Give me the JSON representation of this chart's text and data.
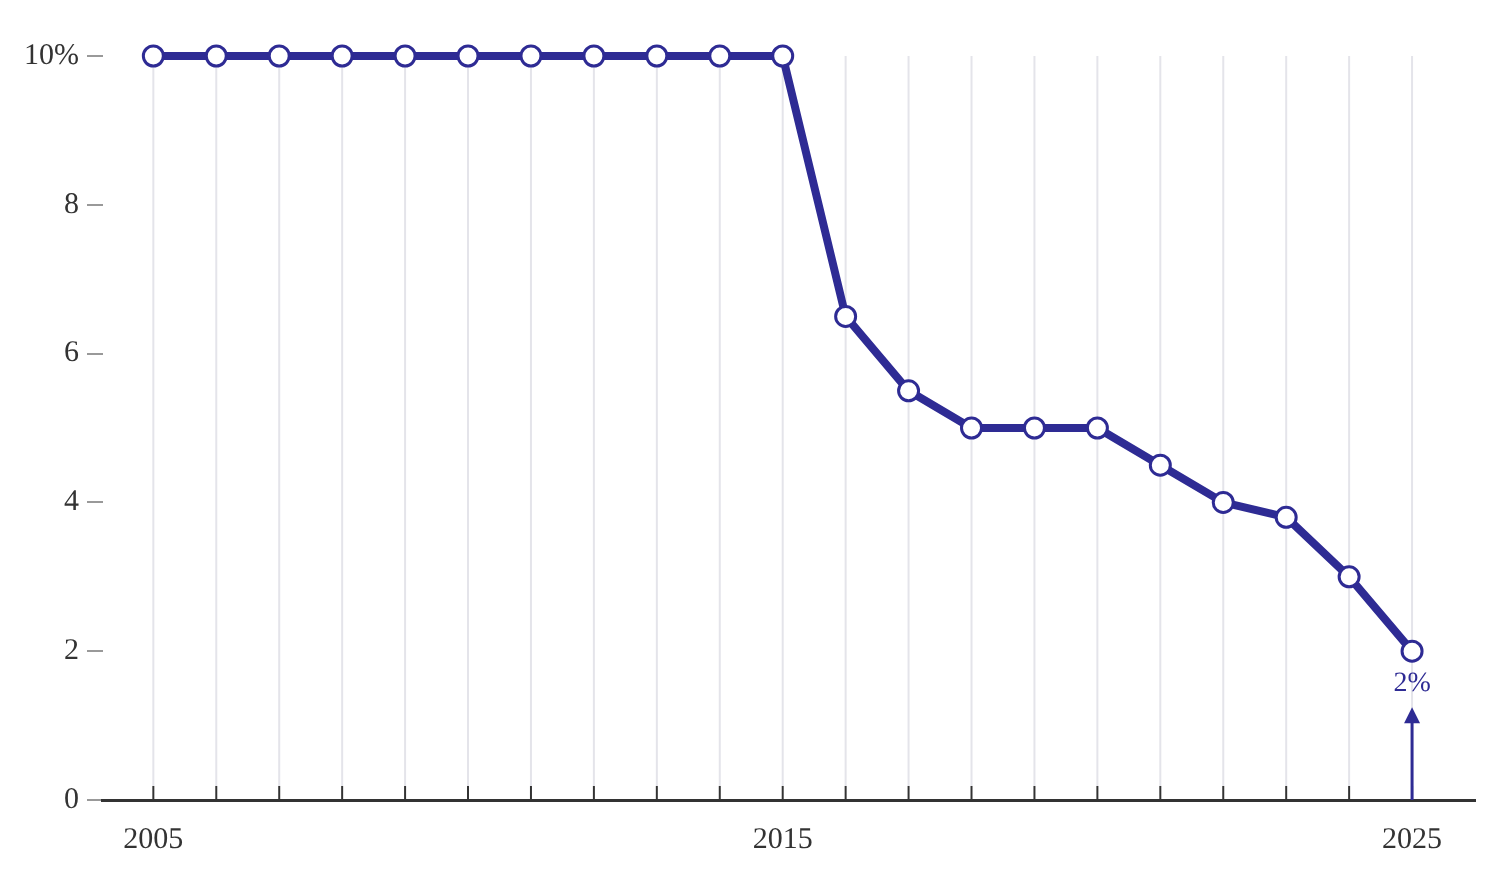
{
  "chart_data": {
    "type": "line",
    "x": [
      2005,
      2006,
      2007,
      2008,
      2009,
      2010,
      2011,
      2012,
      2013,
      2014,
      2015,
      2016,
      2017,
      2018,
      2019,
      2020,
      2021,
      2022,
      2023,
      2024,
      2025
    ],
    "series": [
      {
        "color": "#2e2b94",
        "values": [
          10,
          10,
          10,
          10,
          10,
          10,
          10,
          10,
          10,
          10,
          10,
          6.5,
          5.5,
          5,
          5,
          5,
          4.5,
          4,
          3.8,
          3,
          2
        ]
      }
    ],
    "xlim": [
      2004.2,
      2026
    ],
    "xticks": [
      2005,
      {
        "value": 2006,
        "label": null
      },
      {
        "value": 2007,
        "label": null
      },
      {
        "value": 2008,
        "label": null
      },
      {
        "value": 2009,
        "label": null
      },
      {
        "value": 2010,
        "label": null
      },
      {
        "value": 2011,
        "label": null
      },
      {
        "value": 2012,
        "label": null
      },
      {
        "value": 2013,
        "label": null
      },
      {
        "value": 2014,
        "label": null
      },
      2015,
      {
        "value": 2016,
        "label": null
      },
      {
        "value": 2017,
        "label": null
      },
      {
        "value": 2018,
        "label": null
      },
      {
        "value": 2019,
        "label": null
      },
      {
        "value": 2020,
        "label": null
      },
      {
        "value": 2021,
        "label": null
      },
      {
        "value": 2022,
        "label": null
      },
      {
        "value": 2023,
        "label": null
      },
      {
        "value": 2024,
        "label": null
      },
      2025
    ],
    "ylim": [
      0,
      10
    ],
    "yticks": [
      0,
      2,
      4,
      6,
      8,
      {
        "value": 10,
        "label": "10%"
      }
    ],
    "grid": "x",
    "marker": "circle",
    "line_style": "solid",
    "legend": false,
    "annotations": [
      {
        "text": "2%",
        "x": 2025,
        "y": 2
      }
    ]
  }
}
